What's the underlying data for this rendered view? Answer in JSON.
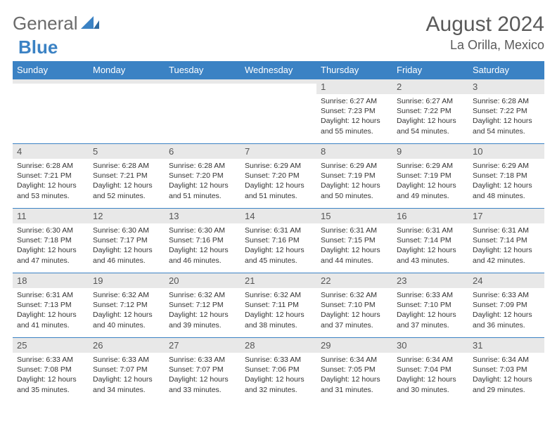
{
  "brand": {
    "part1": "General",
    "part2": "Blue"
  },
  "title": "August 2024",
  "location": "La Orilla, Mexico",
  "colors": {
    "header_bg": "#3b82c4",
    "header_text": "#ffffff",
    "daynum_bg": "#e8e8e8",
    "border": "#3b82c4",
    "brand_gray": "#6a6a6a",
    "brand_blue": "#3b82c4"
  },
  "typography": {
    "title_fontsize": 30,
    "location_fontsize": 18,
    "weekday_fontsize": 13,
    "cell_fontsize": 10.5
  },
  "weekdays": [
    "Sunday",
    "Monday",
    "Tuesday",
    "Wednesday",
    "Thursday",
    "Friday",
    "Saturday"
  ],
  "weeks": [
    [
      {
        "day": "",
        "sunrise": "",
        "sunset": "",
        "daylight": ""
      },
      {
        "day": "",
        "sunrise": "",
        "sunset": "",
        "daylight": ""
      },
      {
        "day": "",
        "sunrise": "",
        "sunset": "",
        "daylight": ""
      },
      {
        "day": "",
        "sunrise": "",
        "sunset": "",
        "daylight": ""
      },
      {
        "day": "1",
        "sunrise": "Sunrise: 6:27 AM",
        "sunset": "Sunset: 7:23 PM",
        "daylight": "Daylight: 12 hours and 55 minutes."
      },
      {
        "day": "2",
        "sunrise": "Sunrise: 6:27 AM",
        "sunset": "Sunset: 7:22 PM",
        "daylight": "Daylight: 12 hours and 54 minutes."
      },
      {
        "day": "3",
        "sunrise": "Sunrise: 6:28 AM",
        "sunset": "Sunset: 7:22 PM",
        "daylight": "Daylight: 12 hours and 54 minutes."
      }
    ],
    [
      {
        "day": "4",
        "sunrise": "Sunrise: 6:28 AM",
        "sunset": "Sunset: 7:21 PM",
        "daylight": "Daylight: 12 hours and 53 minutes."
      },
      {
        "day": "5",
        "sunrise": "Sunrise: 6:28 AM",
        "sunset": "Sunset: 7:21 PM",
        "daylight": "Daylight: 12 hours and 52 minutes."
      },
      {
        "day": "6",
        "sunrise": "Sunrise: 6:28 AM",
        "sunset": "Sunset: 7:20 PM",
        "daylight": "Daylight: 12 hours and 51 minutes."
      },
      {
        "day": "7",
        "sunrise": "Sunrise: 6:29 AM",
        "sunset": "Sunset: 7:20 PM",
        "daylight": "Daylight: 12 hours and 51 minutes."
      },
      {
        "day": "8",
        "sunrise": "Sunrise: 6:29 AM",
        "sunset": "Sunset: 7:19 PM",
        "daylight": "Daylight: 12 hours and 50 minutes."
      },
      {
        "day": "9",
        "sunrise": "Sunrise: 6:29 AM",
        "sunset": "Sunset: 7:19 PM",
        "daylight": "Daylight: 12 hours and 49 minutes."
      },
      {
        "day": "10",
        "sunrise": "Sunrise: 6:29 AM",
        "sunset": "Sunset: 7:18 PM",
        "daylight": "Daylight: 12 hours and 48 minutes."
      }
    ],
    [
      {
        "day": "11",
        "sunrise": "Sunrise: 6:30 AM",
        "sunset": "Sunset: 7:18 PM",
        "daylight": "Daylight: 12 hours and 47 minutes."
      },
      {
        "day": "12",
        "sunrise": "Sunrise: 6:30 AM",
        "sunset": "Sunset: 7:17 PM",
        "daylight": "Daylight: 12 hours and 46 minutes."
      },
      {
        "day": "13",
        "sunrise": "Sunrise: 6:30 AM",
        "sunset": "Sunset: 7:16 PM",
        "daylight": "Daylight: 12 hours and 46 minutes."
      },
      {
        "day": "14",
        "sunrise": "Sunrise: 6:31 AM",
        "sunset": "Sunset: 7:16 PM",
        "daylight": "Daylight: 12 hours and 45 minutes."
      },
      {
        "day": "15",
        "sunrise": "Sunrise: 6:31 AM",
        "sunset": "Sunset: 7:15 PM",
        "daylight": "Daylight: 12 hours and 44 minutes."
      },
      {
        "day": "16",
        "sunrise": "Sunrise: 6:31 AM",
        "sunset": "Sunset: 7:14 PM",
        "daylight": "Daylight: 12 hours and 43 minutes."
      },
      {
        "day": "17",
        "sunrise": "Sunrise: 6:31 AM",
        "sunset": "Sunset: 7:14 PM",
        "daylight": "Daylight: 12 hours and 42 minutes."
      }
    ],
    [
      {
        "day": "18",
        "sunrise": "Sunrise: 6:31 AM",
        "sunset": "Sunset: 7:13 PM",
        "daylight": "Daylight: 12 hours and 41 minutes."
      },
      {
        "day": "19",
        "sunrise": "Sunrise: 6:32 AM",
        "sunset": "Sunset: 7:12 PM",
        "daylight": "Daylight: 12 hours and 40 minutes."
      },
      {
        "day": "20",
        "sunrise": "Sunrise: 6:32 AM",
        "sunset": "Sunset: 7:12 PM",
        "daylight": "Daylight: 12 hours and 39 minutes."
      },
      {
        "day": "21",
        "sunrise": "Sunrise: 6:32 AM",
        "sunset": "Sunset: 7:11 PM",
        "daylight": "Daylight: 12 hours and 38 minutes."
      },
      {
        "day": "22",
        "sunrise": "Sunrise: 6:32 AM",
        "sunset": "Sunset: 7:10 PM",
        "daylight": "Daylight: 12 hours and 37 minutes."
      },
      {
        "day": "23",
        "sunrise": "Sunrise: 6:33 AM",
        "sunset": "Sunset: 7:10 PM",
        "daylight": "Daylight: 12 hours and 37 minutes."
      },
      {
        "day": "24",
        "sunrise": "Sunrise: 6:33 AM",
        "sunset": "Sunset: 7:09 PM",
        "daylight": "Daylight: 12 hours and 36 minutes."
      }
    ],
    [
      {
        "day": "25",
        "sunrise": "Sunrise: 6:33 AM",
        "sunset": "Sunset: 7:08 PM",
        "daylight": "Daylight: 12 hours and 35 minutes."
      },
      {
        "day": "26",
        "sunrise": "Sunrise: 6:33 AM",
        "sunset": "Sunset: 7:07 PM",
        "daylight": "Daylight: 12 hours and 34 minutes."
      },
      {
        "day": "27",
        "sunrise": "Sunrise: 6:33 AM",
        "sunset": "Sunset: 7:07 PM",
        "daylight": "Daylight: 12 hours and 33 minutes."
      },
      {
        "day": "28",
        "sunrise": "Sunrise: 6:33 AM",
        "sunset": "Sunset: 7:06 PM",
        "daylight": "Daylight: 12 hours and 32 minutes."
      },
      {
        "day": "29",
        "sunrise": "Sunrise: 6:34 AM",
        "sunset": "Sunset: 7:05 PM",
        "daylight": "Daylight: 12 hours and 31 minutes."
      },
      {
        "day": "30",
        "sunrise": "Sunrise: 6:34 AM",
        "sunset": "Sunset: 7:04 PM",
        "daylight": "Daylight: 12 hours and 30 minutes."
      },
      {
        "day": "31",
        "sunrise": "Sunrise: 6:34 AM",
        "sunset": "Sunset: 7:03 PM",
        "daylight": "Daylight: 12 hours and 29 minutes."
      }
    ]
  ]
}
